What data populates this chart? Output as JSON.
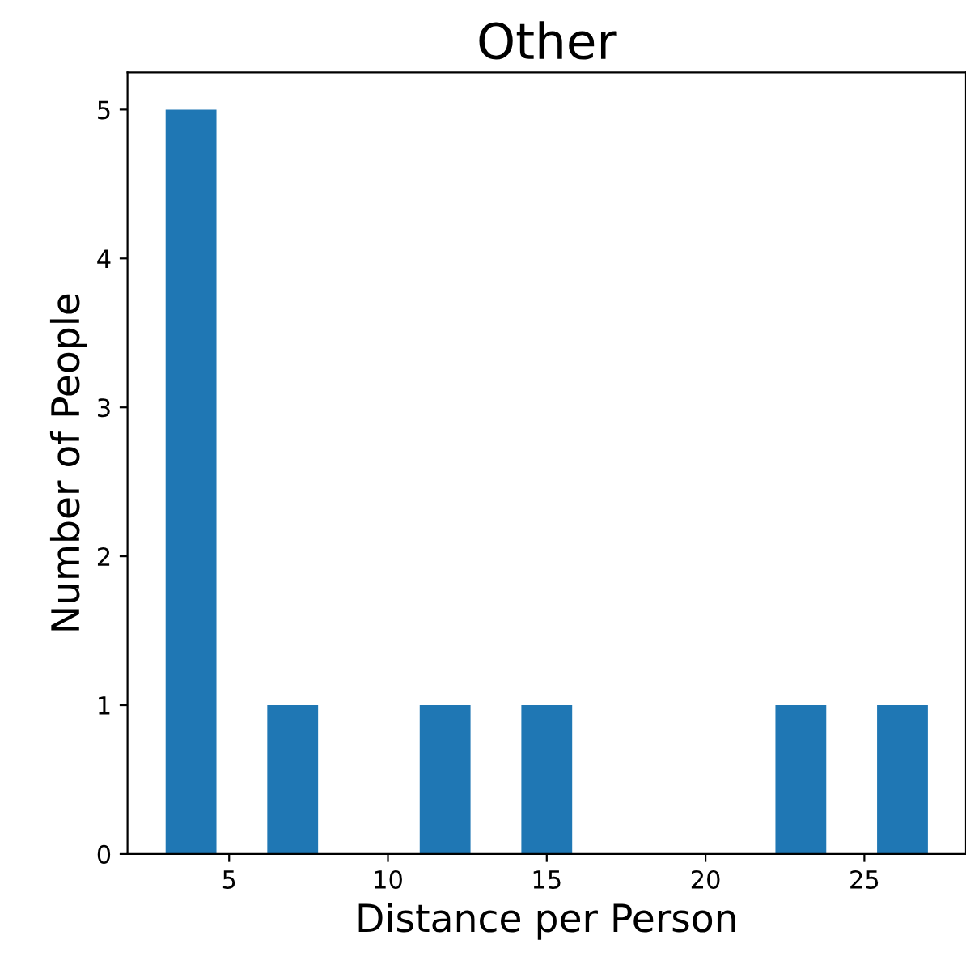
{
  "chart_data": {
    "type": "histogram",
    "title": "Other",
    "xlabel": "Distance per Person",
    "ylabel": "Number of People",
    "bins": [
      3,
      4.6,
      6.2,
      7.8,
      9.4,
      11,
      12.6,
      14.2,
      15.8,
      17.4,
      19,
      20.6,
      22.2,
      23.8,
      25.4,
      27
    ],
    "values": [
      5,
      0,
      1,
      0,
      0,
      1,
      0,
      1,
      0,
      0,
      0,
      0,
      1,
      0,
      1
    ],
    "color": "#1f77b4",
    "xlim": [
      1.8,
      28.2
    ],
    "xticks": [
      5,
      10,
      15,
      20,
      25
    ],
    "ylim": [
      0,
      5.25
    ],
    "yticks": [
      0,
      1,
      2,
      3,
      4,
      5
    ]
  }
}
